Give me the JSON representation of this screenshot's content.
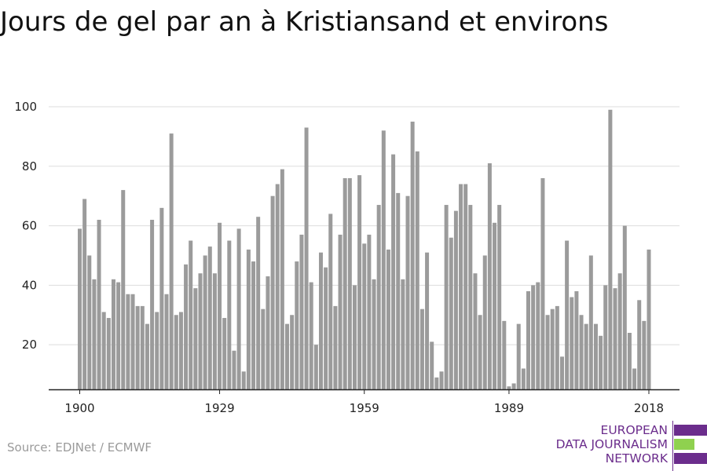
{
  "title": "Jours de gel par an à Kristiansand et environs",
  "source": "Source: EDJNet / ECMWF",
  "logo": {
    "lines": [
      "EUROPEAN",
      "DATA JOURNALISM",
      "NETWORK"
    ],
    "colors": {
      "purple": "#6b2d8c",
      "green": "#8fd14f"
    }
  },
  "colors": {
    "bar": "#9b9b9b",
    "grid": "#dddddd",
    "axis": "#222222"
  },
  "chart_data": {
    "type": "bar",
    "title": "Jours de gel par an à Kristiansand et environs",
    "xlabel": "",
    "ylabel": "",
    "x_start": 1900,
    "x_end": 2018,
    "x_ticks": [
      1900,
      1929,
      1959,
      1989,
      2018
    ],
    "y_ticks": [
      20,
      40,
      60,
      80,
      100
    ],
    "ylim": [
      5,
      103
    ],
    "grid": true,
    "values": [
      59,
      69,
      50,
      42,
      62,
      31,
      29,
      42,
      41,
      72,
      37,
      37,
      33,
      33,
      27,
      62,
      31,
      66,
      37,
      91,
      30,
      31,
      47,
      55,
      39,
      44,
      50,
      53,
      44,
      61,
      29,
      55,
      18,
      59,
      11,
      52,
      48,
      63,
      32,
      43,
      70,
      74,
      79,
      27,
      30,
      48,
      57,
      93,
      41,
      20,
      51,
      46,
      64,
      33,
      57,
      76,
      76,
      40,
      77,
      54,
      57,
      42,
      67,
      92,
      52,
      84,
      71,
      42,
      70,
      95,
      85,
      32,
      51,
      21,
      9,
      11,
      67,
      56,
      65,
      74,
      74,
      67,
      44,
      30,
      50,
      81,
      61,
      67,
      28,
      6,
      7,
      27,
      12,
      38,
      40,
      41,
      76,
      30,
      32,
      33,
      16,
      55,
      36,
      38,
      30,
      27,
      50,
      27,
      23,
      40,
      99,
      39,
      44,
      60,
      24,
      12,
      35,
      28,
      52
    ]
  }
}
